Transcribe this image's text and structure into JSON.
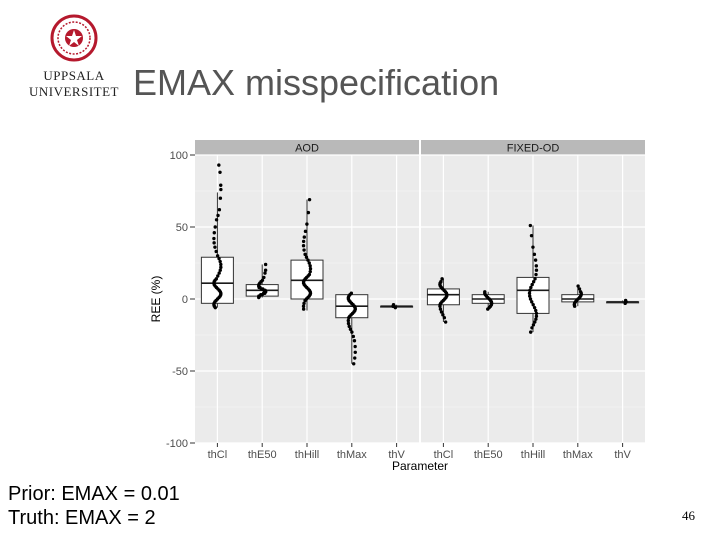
{
  "slide": {
    "title": "EMAX misspecification",
    "page_number": "46",
    "logo": {
      "line1": "UPPSALA",
      "line2": "UNIVERSITET",
      "seal_color": "#b5192d"
    },
    "footnote": {
      "line1": "Prior: EMAX = 0.01",
      "line2": "Truth: EMAX = 2"
    }
  },
  "chart_data": {
    "type": "boxplot",
    "xlabel": "Parameter",
    "ylabel": "REE (%)",
    "ylim": [
      -100,
      100
    ],
    "yticks": [
      100,
      50,
      0,
      -50,
      -100
    ],
    "ytick_labels": [
      "100",
      "50",
      "0",
      "-50",
      "-100"
    ],
    "categories": [
      "thCl",
      "thE50",
      "thHill",
      "thMax",
      "thV"
    ],
    "grid": true,
    "panel_background": "#ebebeb",
    "strip_background": "#b9b9b9",
    "panels": [
      {
        "name": "AOD",
        "boxes": [
          {
            "category": "thCl",
            "q1": -3,
            "median": 11,
            "q3": 29,
            "whisker_low": -6,
            "whisker_high": 74,
            "points": [
              93,
              88,
              79,
              76,
              70,
              62,
              58,
              55,
              50,
              46,
              42,
              39,
              36,
              33,
              30,
              28,
              26,
              24,
              22,
              20,
              18,
              16,
              14,
              13,
              12,
              11,
              10,
              9,
              8,
              7,
              6,
              5,
              4,
              3,
              2,
              1,
              0,
              -1,
              -2,
              -3,
              -4,
              -5,
              -6
            ]
          },
          {
            "category": "thE50",
            "q1": 2,
            "median": 6,
            "q3": 10,
            "whisker_low": 1,
            "whisker_high": 24,
            "points": [
              24,
              20,
              18,
              15,
              13,
              12,
              11,
              10,
              9,
              8,
              8,
              7,
              7,
              6,
              6,
              5,
              5,
              4,
              4,
              3,
              3,
              2,
              2,
              1
            ]
          },
          {
            "category": "thHill",
            "q1": 0,
            "median": 13,
            "q3": 27,
            "whisker_low": -8,
            "whisker_high": 69,
            "points": [
              69,
              60,
              52,
              47,
              43,
              40,
              37,
              34,
              31,
              29,
              27,
              25,
              23,
              21,
              19,
              17,
              16,
              15,
              14,
              13,
              12,
              11,
              10,
              9,
              8,
              7,
              6,
              5,
              4,
              3,
              2,
              1,
              0,
              -1,
              -3,
              -5,
              -7
            ]
          },
          {
            "category": "thMax",
            "q1": -13,
            "median": -5,
            "q3": 3,
            "whisker_low": -45,
            "whisker_high": 4,
            "points": [
              4,
              3,
              2,
              1,
              0,
              -1,
              -2,
              -3,
              -4,
              -5,
              -6,
              -7,
              -8,
              -9,
              -10,
              -11,
              -12,
              -13,
              -15,
              -17,
              -19,
              -21,
              -23,
              -26,
              -29,
              -33,
              -37,
              -41,
              -45
            ]
          },
          {
            "category": "thV",
            "q1": -5,
            "median": -5,
            "q3": -5,
            "whisker_low": -6,
            "whisker_high": -4,
            "points": [
              -4,
              -5,
              -5,
              -5,
              -6
            ]
          }
        ]
      },
      {
        "name": "FIXED-OD",
        "boxes": [
          {
            "category": "thCl",
            "q1": -4,
            "median": 3,
            "q3": 7,
            "whisker_low": -16,
            "whisker_high": 14,
            "points": [
              14,
              12,
              11,
              10,
              9,
              8,
              7,
              6,
              5,
              4,
              3,
              2,
              1,
              0,
              -1,
              -2,
              -3,
              -4,
              -5,
              -7,
              -9,
              -11,
              -13,
              -16
            ]
          },
          {
            "category": "thE50",
            "q1": -3,
            "median": 0,
            "q3": 3,
            "whisker_low": -7,
            "whisker_high": 5,
            "points": [
              5,
              4,
              3,
              2,
              1,
              0,
              -1,
              -2,
              -3,
              -4,
              -5,
              -6,
              -7
            ]
          },
          {
            "category": "thHill",
            "q1": -10,
            "median": 6,
            "q3": 15,
            "whisker_low": -23,
            "whisker_high": 51,
            "points": [
              51,
              44,
              36,
              31,
              27,
              23,
              20,
              17,
              14,
              12,
              10,
              8,
              6,
              4,
              2,
              0,
              -2,
              -4,
              -6,
              -8,
              -10,
              -12,
              -14,
              -16,
              -18,
              -20,
              -23
            ]
          },
          {
            "category": "thMax",
            "q1": -2,
            "median": 0,
            "q3": 3,
            "whisker_low": -5,
            "whisker_high": 9,
            "points": [
              9,
              7,
              5,
              4,
              3,
              2,
              1,
              0,
              -1,
              -2,
              -3,
              -4,
              -5
            ]
          },
          {
            "category": "thV",
            "q1": -2,
            "median": -2,
            "q3": -2,
            "whisker_low": -3,
            "whisker_high": -1,
            "points": [
              -1,
              -2,
              -2,
              -3
            ]
          }
        ]
      }
    ]
  }
}
